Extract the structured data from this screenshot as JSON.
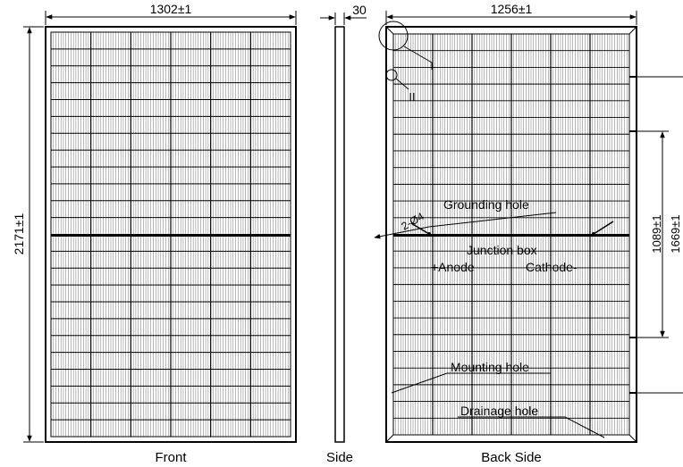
{
  "front_view": {
    "caption": "Front",
    "width_dim": "1302±1",
    "height_dim": "2171±1"
  },
  "side_view": {
    "caption": "Side",
    "thickness_dim": "30"
  },
  "back_view": {
    "caption": "Back Side",
    "width_dim": "1256±1",
    "detail_marker": "II",
    "mounting_distance_dim": "1089±1",
    "outer_distance_dim": "1669±1",
    "grounding_hole_dim": "2-Ø4",
    "grounding_hole_label": "Grounding hole",
    "junction_box_label": "Junction box",
    "anode_label": "+Anode",
    "cathode_label": "Cathode-",
    "mounting_hole_label": "Mounting hole",
    "drainage_hole_label": "Drainage hole"
  },
  "colors": {
    "line": "#000000",
    "grid": "#333333",
    "background": "#ffffff"
  }
}
